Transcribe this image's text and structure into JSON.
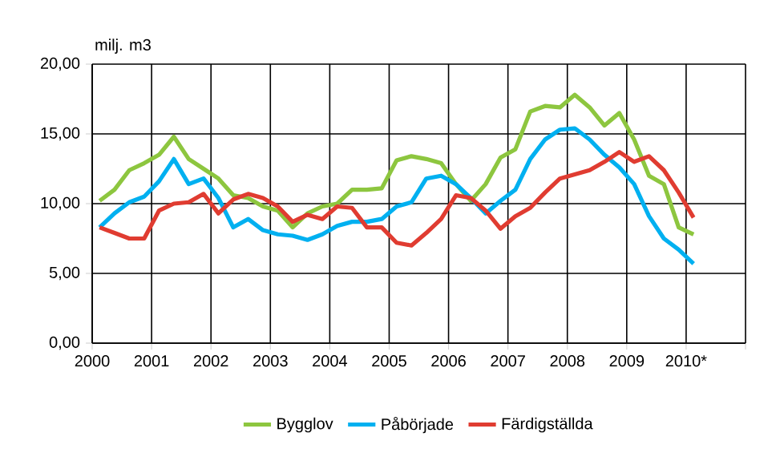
{
  "chart_data": {
    "type": "line",
    "ylabel": "milj. m3",
    "x": [
      2000.125,
      2000.375,
      2000.625,
      2000.875,
      2001.125,
      2001.375,
      2001.625,
      2001.875,
      2002.125,
      2002.375,
      2002.625,
      2002.875,
      2003.125,
      2003.375,
      2003.625,
      2003.875,
      2004.125,
      2004.375,
      2004.625,
      2004.875,
      2005.125,
      2005.375,
      2005.625,
      2005.875,
      2006.125,
      2006.375,
      2006.625,
      2006.875,
      2007.125,
      2007.375,
      2007.625,
      2007.875,
      2008.125,
      2008.375,
      2008.625,
      2008.875,
      2009.125,
      2009.375,
      2009.625,
      2009.875,
      2010.125
    ],
    "series": [
      {
        "name": "Bygglov",
        "color": "#8dc63f",
        "values": [
          10.2,
          11.0,
          12.4,
          12.9,
          13.5,
          14.8,
          13.2,
          12.5,
          11.8,
          10.6,
          10.4,
          9.8,
          9.5,
          8.3,
          9.3,
          9.8,
          10.0,
          11.0,
          11.0,
          11.1,
          13.1,
          13.4,
          13.2,
          12.9,
          11.4,
          10.2,
          11.4,
          13.3,
          13.9,
          16.6,
          17.0,
          16.9,
          17.8,
          16.9,
          15.6,
          16.5,
          14.6,
          12.0,
          11.4,
          8.3,
          7.8
        ]
      },
      {
        "name": "Påbörjade",
        "color": "#00b0f0",
        "values": [
          8.3,
          9.3,
          10.1,
          10.5,
          11.6,
          13.2,
          11.4,
          11.8,
          10.4,
          8.3,
          8.9,
          8.1,
          7.8,
          7.7,
          7.4,
          7.8,
          8.4,
          8.7,
          8.7,
          8.9,
          9.8,
          10.1,
          11.8,
          12.0,
          11.4,
          10.4,
          9.3,
          10.2,
          11.0,
          13.2,
          14.6,
          15.3,
          15.4,
          14.6,
          13.5,
          12.6,
          11.4,
          9.1,
          7.5,
          6.7,
          5.7
        ]
      },
      {
        "name": "Färdigställda",
        "color": "#e03c31",
        "values": [
          8.3,
          7.9,
          7.5,
          7.5,
          9.5,
          10.0,
          10.1,
          10.7,
          9.3,
          10.3,
          10.7,
          10.4,
          9.8,
          8.7,
          9.2,
          8.9,
          9.8,
          9.7,
          8.3,
          8.3,
          7.2,
          7.0,
          7.9,
          8.9,
          10.6,
          10.4,
          9.5,
          8.2,
          9.1,
          9.7,
          10.8,
          11.8,
          12.1,
          12.4,
          13.0,
          13.7,
          13.0,
          13.4,
          12.4,
          10.8,
          9.0
        ]
      }
    ],
    "xlim": [
      2000,
      2011
    ],
    "xticks": [
      2000,
      2001,
      2002,
      2003,
      2004,
      2005,
      2006,
      2007,
      2008,
      2009,
      {
        "value": 2010,
        "label": "2010*"
      },
      {
        "value": 2011,
        "label": null
      }
    ],
    "ylim": [
      0,
      20
    ],
    "yticks": [
      {
        "value": 0,
        "label": "0,00"
      },
      {
        "value": 5,
        "label": "5,00"
      },
      {
        "value": 10,
        "label": "10,00"
      },
      {
        "value": 15,
        "label": "15,00"
      },
      {
        "value": 20,
        "label": "20,00"
      }
    ],
    "grid": true,
    "legend": "bottom",
    "line_style": "solid",
    "marker": "none"
  }
}
